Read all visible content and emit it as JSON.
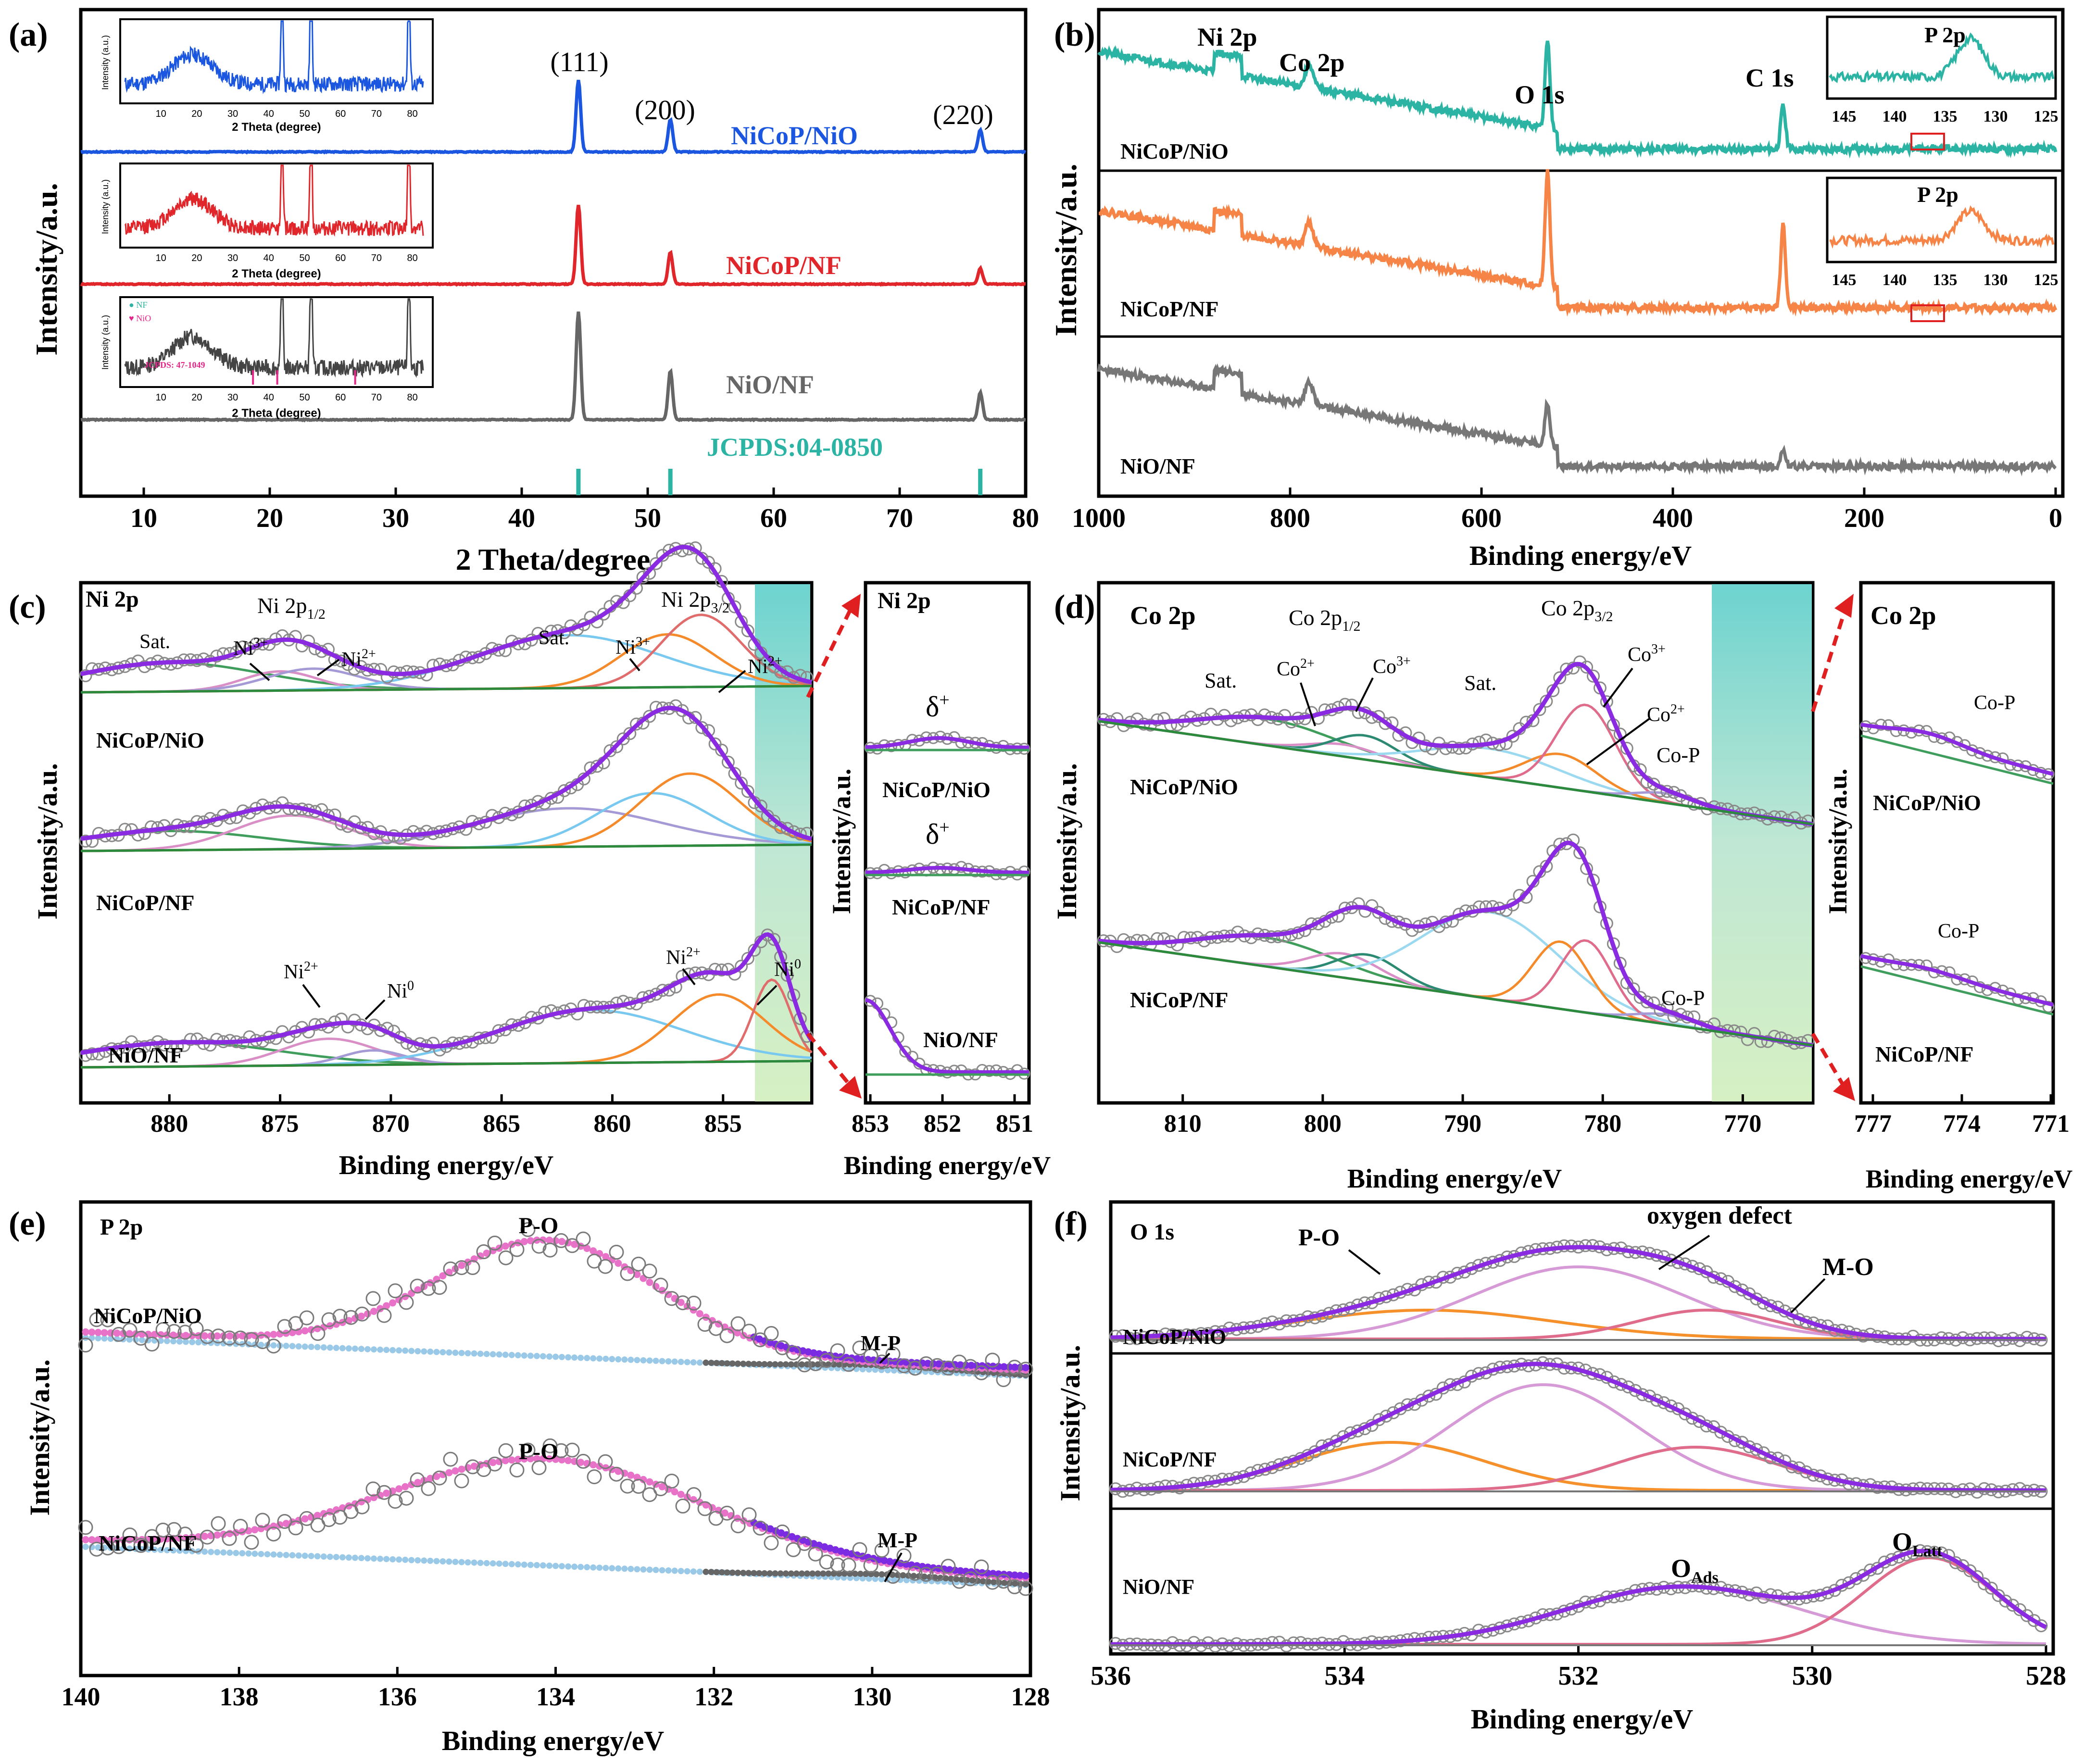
{
  "panels": {
    "a": {
      "letter": "(a)",
      "xlabel": "2 Theta/degree",
      "ylabel": "Intensity/a.u.",
      "xticks": [
        "10",
        "20",
        "30",
        "40",
        "50",
        "60",
        "70",
        "80"
      ],
      "peaks": [
        "(111)",
        "(200)",
        "(220)"
      ],
      "samples": [
        "NiCoP/NiO",
        "NiCoP/NF",
        "NiO/NF"
      ],
      "ref": "JCPDS:04-0850",
      "inset": {
        "xlabel": "2 Theta (degree)",
        "ylabel": "Intensity (a.u.)",
        "xticks": [
          "10",
          "20",
          "30",
          "40",
          "50",
          "60",
          "70",
          "80"
        ],
        "legend_nf": "NF",
        "legend_nio": "NiO",
        "ref": "JCPDS: 47-1049"
      }
    },
    "b": {
      "letter": "(b)",
      "xlabel": "Binding energy/eV",
      "ylabel": "Intensity/a.u.",
      "xticks": [
        "1000",
        "800",
        "600",
        "400",
        "200",
        "0"
      ],
      "labels": [
        "Ni 2p",
        "Co 2p",
        "O 1s",
        "C 1s"
      ],
      "samples": [
        "NiCoP/NiO",
        "NiCoP/NF",
        "NiO/NF"
      ],
      "inset_title": "P 2p",
      "inset_xticks": [
        "145",
        "140",
        "135",
        "130",
        "125"
      ]
    },
    "c": {
      "letter": "(c)",
      "title": "Ni 2p",
      "xlabel": "Binding energy/eV",
      "ylabel": "Intensity/a.u.",
      "xticks": [
        "880",
        "875",
        "870",
        "865",
        "860",
        "855"
      ],
      "ni_12": "Ni 2p",
      "ni_12_sub": "1/2",
      "ni_32": "Ni 2p",
      "ni_32_sub": "3/2",
      "sat": "Sat.",
      "ni3": "Ni",
      "ni3_sup": "3+",
      "ni2": "Ni",
      "ni2_sup": "2+",
      "ni0": "Ni",
      "ni0_sup": "0",
      "samples": [
        "NiCoP/NiO",
        "NiCoP/NF",
        "NiO/NF"
      ],
      "zoom": {
        "title": "Ni 2p",
        "delta": "δ",
        "delta_sup": "+",
        "xlabel": "Binding energy/eV",
        "xticks": [
          "853",
          "852",
          "851"
        ]
      }
    },
    "d": {
      "letter": "(d)",
      "title": "Co 2p",
      "xlabel": "Binding energy/eV",
      "ylabel": "Intensity/a.u.",
      "xticks": [
        "810",
        "800",
        "790",
        "780",
        "770"
      ],
      "co_12": "Co 2p",
      "co_12_sub": "1/2",
      "co_32": "Co 2p",
      "co_32_sub": "3/2",
      "sat": "Sat.",
      "co2": "Co",
      "co2_sup": "2+",
      "co3": "Co",
      "co3_sup": "3+",
      "cop": "Co-P",
      "samples": [
        "NiCoP/NiO",
        "NiCoP/NF"
      ],
      "zoom": {
        "title": "Co 2p",
        "cop": "Co-P",
        "xlabel": "Binding energy/eV",
        "xticks": [
          "777",
          "774",
          "771"
        ]
      }
    },
    "e": {
      "letter": "(e)",
      "title": "P 2p",
      "xlabel": "Binding energy/eV",
      "ylabel": "Intensity/a.u.",
      "xticks": [
        "140",
        "138",
        "136",
        "134",
        "132",
        "130",
        "128"
      ],
      "po": "P-O",
      "mp": "M-P",
      "samples": [
        "NiCoP/NiO",
        "NiCoP/NF"
      ]
    },
    "f": {
      "letter": "(f)",
      "title": "O 1s",
      "xlabel": "Binding energy/eV",
      "ylabel": "Intensity/a.u.",
      "xticks": [
        "536",
        "534",
        "532",
        "530",
        "528"
      ],
      "po": "P-O",
      "defect": "oxygen defect",
      "mo": "M-O",
      "o_ads": "O",
      "o_ads_sub": "Ads",
      "o_latt": "O",
      "o_latt_sub": "Latt",
      "samples": [
        "NiCoP/NiO",
        "NiCoP/NF",
        "NiO/NF"
      ]
    }
  },
  "chart_data": [
    {
      "panel": "a",
      "type": "line",
      "xlim": [
        5,
        80
      ],
      "peaks_2theta": [
        44.5,
        51.8,
        76.4
      ],
      "series": [
        {
          "name": "NiCoP/NiO",
          "peak_intensity": [
            1.0,
            0.45,
            0.3
          ]
        },
        {
          "name": "NiCoP/NF",
          "peak_intensity": [
            1.0,
            0.4,
            0.2
          ]
        },
        {
          "name": "NiO/NF",
          "peak_intensity": [
            1.0,
            0.45,
            0.25
          ]
        }
      ],
      "reference": {
        "name": "JCPDS:04-0850",
        "positions": [
          44.5,
          51.8,
          76.4
        ]
      }
    },
    {
      "panel": "b",
      "type": "line",
      "xlim": [
        1000,
        0
      ],
      "peak_positions_eV": {
        "Ni 2p": 855,
        "Co 2p": 781,
        "O 1s": 531,
        "C 1s": 284.8
      }
    },
    {
      "panel": "c",
      "type": "line",
      "xlim": [
        884,
        851
      ],
      "peaks_eV": {
        "Sat.": [
          880,
          862
        ],
        "Ni3+": [
          875,
          857.5
        ],
        "Ni2+": [
          873.5,
          856
        ],
        "Ni0": [
          870.5,
          852.8
        ]
      }
    },
    {
      "panel": "d",
      "type": "line",
      "xlim": [
        816,
        765
      ],
      "peaks_eV": {
        "Sat.": [
          804,
          788
        ],
        "Co2+": [
          798.5,
          783
        ],
        "Co3+": [
          797,
          781.2
        ],
        "Co-P": [
          775.5
        ]
      }
    },
    {
      "panel": "e",
      "type": "line",
      "xlim": [
        140,
        128
      ],
      "peaks_eV": {
        "P-O": 134.1,
        "M-P": 129.8
      }
    },
    {
      "panel": "f",
      "type": "line",
      "xlim": [
        536,
        528
      ],
      "peaks_eV": {
        "P-O": 533.3,
        "oxygen defect": 532,
        "M-O": 530.9,
        "O_Ads": 531.1,
        "O_Latt": 529
      }
    }
  ]
}
